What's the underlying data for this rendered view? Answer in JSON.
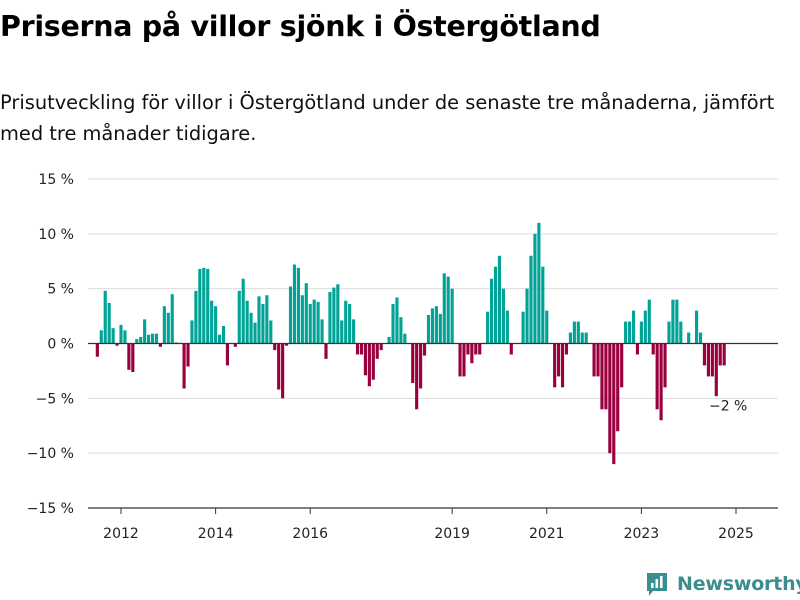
{
  "title": "Priserna på villor sjönk i Östergötland",
  "subtitle": "Prisutveckling för villor i Östergötland under de senaste tre månaderna, jämfört med tre månader tidigare.",
  "brand": "Newsworthy",
  "colors": {
    "positive": "#00a396",
    "negative": "#99003d",
    "grid": "#dddddd",
    "axis": "#333333"
  },
  "chart_data": {
    "type": "bar",
    "title": "Priserna på villor sjönk i Östergötland",
    "ylim": [
      -15,
      15
    ],
    "ytick_labels": [
      "15 %",
      "10 %",
      "5 %",
      "0 %",
      "−5 %",
      "−10 %",
      "−15 %"
    ],
    "yticks": [
      15,
      10,
      5,
      0,
      -5,
      -10,
      -15
    ],
    "xtick_labels": [
      "2012",
      "2014",
      "2016",
      "2019",
      "2021",
      "2023",
      "2025"
    ],
    "xticks": [
      2012,
      2014,
      2016,
      2019,
      2021,
      2023,
      2025
    ],
    "x_start": 2011.5,
    "x_end": 2026,
    "bar_period": "month",
    "series": [
      {
        "values": [
          -1.2,
          1.2,
          4.8,
          3.7,
          1.4,
          -0.2,
          1.7,
          1.2,
          -2.4,
          -2.6,
          0.4,
          0.6,
          2.2,
          0.8,
          0.9,
          0.9,
          -0.3,
          3.4,
          2.8,
          4.5,
          0.1,
          0,
          -4.1,
          -2.1,
          2.1,
          4.8,
          6.8,
          6.9,
          6.8,
          3.9,
          3.4,
          0.8,
          1.6,
          -2,
          0,
          -0.3,
          4.8,
          5.9,
          3.9,
          2.8,
          1.9,
          4.3,
          3.6,
          4.4,
          2.1,
          -0.6,
          -4.2,
          -5,
          -0.2,
          5.2,
          7.2,
          6.9,
          4.4,
          5.5,
          3.6,
          4,
          3.8,
          2.2,
          -1.4,
          4.7,
          5.1,
          5.4,
          2.1,
          3.9,
          3.6,
          2.2,
          -1,
          -1,
          -2.9,
          -3.9,
          -3.3,
          -1.4,
          -0.6,
          0,
          0.6,
          3.6,
          4.2,
          2.4,
          0.9,
          0,
          -3.6,
          -6,
          -4.1,
          -1.1,
          2.6,
          3.2,
          3.4,
          2.7,
          6.4,
          6.1,
          5,
          0,
          -3,
          -3,
          -1,
          -1.8,
          -1,
          -1,
          0,
          2.9,
          5.9,
          7,
          8,
          5,
          3,
          -1,
          0,
          0,
          2.9,
          5,
          8,
          10,
          11,
          7,
          3,
          0,
          -4,
          -3,
          -4,
          -1,
          1,
          2,
          2,
          1,
          1,
          0,
          -3,
          -3,
          -6,
          -6,
          -10,
          -11,
          -8,
          -4,
          2,
          2,
          3,
          -1,
          2,
          3,
          4,
          -1,
          -6,
          -7,
          -4,
          2,
          4,
          4,
          2,
          0,
          1,
          0,
          3,
          1,
          -2,
          -3,
          -3,
          -4.8,
          -2,
          -2
        ]
      }
    ],
    "annotation": {
      "text": "−2 %",
      "value": -2
    }
  }
}
